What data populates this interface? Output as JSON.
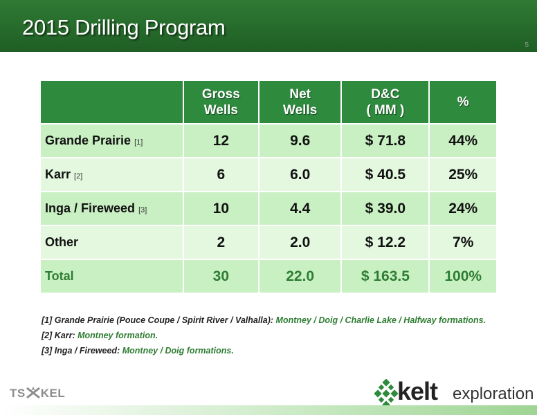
{
  "header": {
    "title": "2015 Drilling Program",
    "page_number": "5"
  },
  "table": {
    "headers": [
      {
        "line1": "",
        "line2": ""
      },
      {
        "line1": "Gross",
        "line2": "Wells"
      },
      {
        "line1": "Net",
        "line2": "Wells"
      },
      {
        "line1": "D&C",
        "line2": "( MM )"
      },
      {
        "line1": "%",
        "line2": ""
      }
    ],
    "rows": [
      {
        "label": "Grande Prairie",
        "ref": "[1]",
        "gross": "12",
        "net": "9.6",
        "dc": "$ 71.8",
        "pct": "44%"
      },
      {
        "label": "Karr",
        "ref": "[2]",
        "gross": "6",
        "net": "6.0",
        "dc": "$ 40.5",
        "pct": "25%"
      },
      {
        "label": "Inga / Fireweed",
        "ref": "[3]",
        "gross": "10",
        "net": "4.4",
        "dc": "$ 39.0",
        "pct": "24%"
      },
      {
        "label": "Other",
        "ref": "",
        "gross": "2",
        "net": "2.0",
        "dc": "$ 12.2",
        "pct": "7%"
      },
      {
        "label": "Total",
        "ref": "",
        "gross": "30",
        "net": "22.0",
        "dc": "$ 163.5",
        "pct": "100%"
      }
    ]
  },
  "footnotes": [
    {
      "ref": "[1]",
      "area": "Grande Prairie (Pouce Coupe / Spirit River / Valhalla):",
      "formations": "Montney / Doig / Charlie Lake / Halfway formations."
    },
    {
      "ref": "[2]",
      "area": "Karr:",
      "formations": "Montney formation."
    },
    {
      "ref": "[3]",
      "area": "Inga / Fireweed:",
      "formations": "Montney / Doig formations."
    }
  ],
  "logos": {
    "tsx_left": "TS",
    "tsx_right": "KEL",
    "kelt_word": "kelt",
    "exploration_word": "exploration"
  },
  "colors": {
    "header_green": "#2f7a34",
    "table_header_green": "#2e8b3e",
    "row_light": "#e3f8df",
    "row_mid": "#c9f0c3",
    "accent_green": "#2e7d32"
  }
}
